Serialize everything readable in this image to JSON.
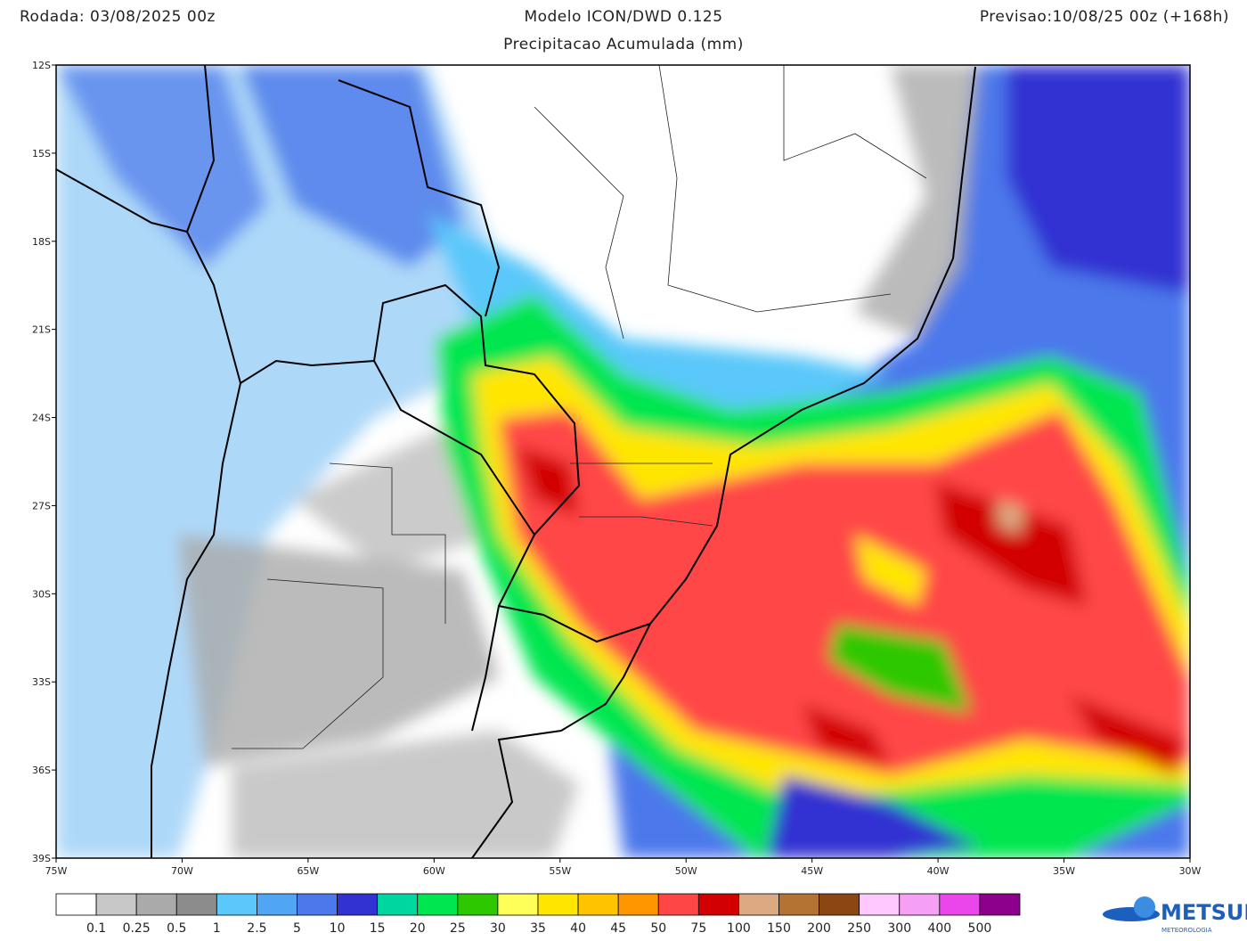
{
  "header": {
    "run": "Rodada: 03/08/2025 00z",
    "model": "Modelo ICON/DWD 0.125",
    "variable": "Precipitacao Acumulada (mm)",
    "forecast": "Previsao:10/08/25 00z (+168h)"
  },
  "map": {
    "lat_labels": [
      "12S",
      "15S",
      "18S",
      "21S",
      "24S",
      "27S",
      "30S",
      "33S",
      "36S",
      "39S"
    ],
    "lon_labels": [
      "75W",
      "70W",
      "65W",
      "60W",
      "55W",
      "50W",
      "45W",
      "40W",
      "35W",
      "30W"
    ]
  },
  "legend": {
    "colors": [
      "#ffffff",
      "#c8c8c8",
      "#aaaaaa",
      "#8c8c8c",
      "#5ac8fa",
      "#50a5f5",
      "#4b78eb",
      "#3232d2",
      "#00d7a0",
      "#00e650",
      "#2dc800",
      "#ffff5a",
      "#ffe600",
      "#ffc300",
      "#ff9600",
      "#ff4646",
      "#d20000",
      "#dcaa82",
      "#b47332",
      "#8c4614",
      "#ffc8ff",
      "#f5a0f5",
      "#eb46eb",
      "#8c008c"
    ],
    "labels": [
      "0.1",
      "0.25",
      "0.5",
      "1",
      "2.5",
      "5",
      "10",
      "15",
      "20",
      "25",
      "30",
      "35",
      "40",
      "45",
      "50",
      "75",
      "100",
      "150",
      "200",
      "250",
      "300",
      "400",
      "500"
    ]
  },
  "logo": {
    "name": "METSUL",
    "tagline": "METEOROLOGIA"
  }
}
